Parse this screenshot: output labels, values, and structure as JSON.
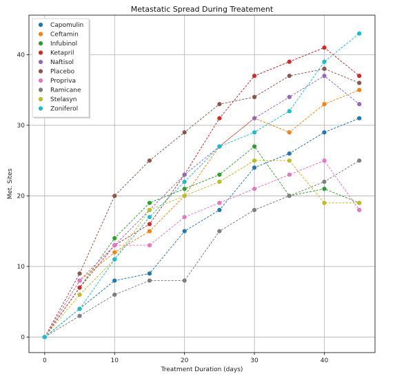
{
  "chart_data": {
    "type": "line",
    "title": "Metastatic Spread During Treatement",
    "xlabel": "Treatment Duration (days)",
    "ylabel": "Met. Sites",
    "xlim": [
      -2.25,
      47.25
    ],
    "ylim": [
      -2.2,
      45.6
    ],
    "xticks": [
      0,
      10,
      20,
      30,
      40
    ],
    "yticks": [
      0,
      10,
      20,
      30,
      40
    ],
    "grid": true,
    "legend": "upper-left",
    "x": [
      0,
      5,
      10,
      15,
      20,
      25,
      30,
      35,
      40,
      45
    ],
    "series": [
      {
        "name": "Capomulin",
        "color": "#1f77b4",
        "values": [
          0,
          4,
          8,
          9,
          15,
          18,
          24,
          26,
          29,
          31
        ]
      },
      {
        "name": "Ceftamin",
        "color": "#ff7f0e",
        "values": [
          0,
          8,
          12,
          15,
          20,
          27,
          31,
          29,
          33,
          35
        ]
      },
      {
        "name": "Infubinol",
        "color": "#2ca02c",
        "values": [
          0,
          7,
          14,
          19,
          21,
          23,
          27,
          20,
          21,
          19
        ]
      },
      {
        "name": "Ketapril",
        "color": "#d62728",
        "values": [
          0,
          7,
          13,
          16,
          23,
          31,
          37,
          39,
          41,
          37
        ]
      },
      {
        "name": "Naftisol",
        "color": "#9467bd",
        "values": [
          0,
          8,
          13,
          18,
          23,
          27,
          31,
          34,
          37,
          33
        ]
      },
      {
        "name": "Placebo",
        "color": "#8c564b",
        "values": [
          0,
          9,
          20,
          25,
          29,
          33,
          34,
          37,
          38,
          36
        ]
      },
      {
        "name": "Propriva",
        "color": "#e377c2",
        "values": [
          0,
          8,
          13,
          13,
          17,
          19,
          21,
          23,
          25,
          18
        ]
      },
      {
        "name": "Ramicane",
        "color": "#7f7f7f",
        "values": [
          0,
          3,
          6,
          8,
          8,
          15,
          18,
          20,
          22,
          25
        ]
      },
      {
        "name": "Stelasyn",
        "color": "#bcbd22",
        "values": [
          0,
          6,
          11,
          18,
          20,
          22,
          25,
          25,
          19,
          19
        ]
      },
      {
        "name": "Zoniferol",
        "color": "#17becf",
        "values": [
          0,
          4,
          11,
          17,
          22,
          27,
          29,
          32,
          39,
          43
        ]
      }
    ]
  }
}
